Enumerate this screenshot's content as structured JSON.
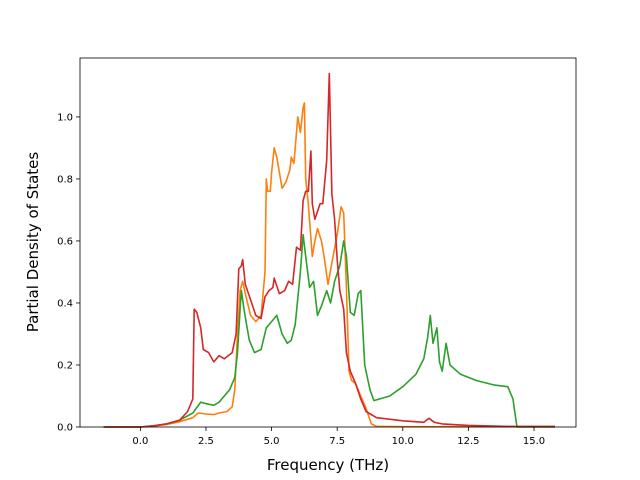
{
  "chart_data": {
    "type": "line",
    "xlabel": "Frequency (THz)",
    "ylabel": "Partial Density of States",
    "xlim": [
      -2.3,
      16.6
    ],
    "ylim": [
      0.0,
      1.19
    ],
    "xticks": [
      0.0,
      2.5,
      5.0,
      7.5,
      10.0,
      12.5,
      15.0
    ],
    "xtick_labels": [
      "0.0",
      "2.5",
      "5.0",
      "7.5",
      "10.0",
      "12.5",
      "15.0"
    ],
    "yticks": [
      0.0,
      0.2,
      0.4,
      0.6,
      0.8,
      1.0
    ],
    "ytick_labels": [
      "0.0",
      "0.2",
      "0.4",
      "0.6",
      "0.8",
      "1.0"
    ],
    "grid": false,
    "legend": "none",
    "series": [
      {
        "color": "#ff7f0e",
        "points": [
          [
            -1.4,
            0
          ],
          [
            0,
            0
          ],
          [
            0.5,
            0.003
          ],
          [
            1,
            0.008
          ],
          [
            1.5,
            0.017
          ],
          [
            2,
            0.03
          ],
          [
            2.2,
            0.045
          ],
          [
            2.5,
            0.042
          ],
          [
            2.8,
            0.04
          ],
          [
            3.0,
            0.045
          ],
          [
            3.3,
            0.05
          ],
          [
            3.5,
            0.065
          ],
          [
            3.6,
            0.12
          ],
          [
            3.7,
            0.3
          ],
          [
            3.8,
            0.44
          ],
          [
            3.9,
            0.47
          ],
          [
            4.0,
            0.43
          ],
          [
            4.2,
            0.36
          ],
          [
            4.4,
            0.34
          ],
          [
            4.6,
            0.36
          ],
          [
            4.75,
            0.5
          ],
          [
            4.8,
            0.8
          ],
          [
            4.85,
            0.76
          ],
          [
            4.95,
            0.76
          ],
          [
            5.0,
            0.82
          ],
          [
            5.1,
            0.9
          ],
          [
            5.2,
            0.87
          ],
          [
            5.4,
            0.77
          ],
          [
            5.55,
            0.79
          ],
          [
            5.7,
            0.83
          ],
          [
            5.75,
            0.87
          ],
          [
            5.85,
            0.85
          ],
          [
            5.95,
            0.95
          ],
          [
            6.0,
            1.0
          ],
          [
            6.1,
            0.95
          ],
          [
            6.2,
            1.03
          ],
          [
            6.25,
            1.045
          ],
          [
            6.3,
            0.8
          ],
          [
            6.4,
            0.72
          ],
          [
            6.55,
            0.55
          ],
          [
            6.65,
            0.6
          ],
          [
            6.75,
            0.64
          ],
          [
            6.9,
            0.6
          ],
          [
            7.0,
            0.55
          ],
          [
            7.15,
            0.46
          ],
          [
            7.3,
            0.53
          ],
          [
            7.5,
            0.62
          ],
          [
            7.65,
            0.71
          ],
          [
            7.75,
            0.69
          ],
          [
            7.85,
            0.45
          ],
          [
            7.95,
            0.18
          ],
          [
            8.05,
            0.15
          ],
          [
            8.2,
            0.14
          ],
          [
            8.4,
            0.1
          ],
          [
            8.6,
            0.06
          ],
          [
            8.8,
            0.01
          ],
          [
            9.0,
            0.002
          ],
          [
            10.0,
            0.001
          ],
          [
            11.5,
            0.001
          ],
          [
            14.3,
            0.001
          ],
          [
            15.8,
            0.001
          ]
        ]
      },
      {
        "color": "#2ca02c",
        "points": [
          [
            -1.4,
            0
          ],
          [
            0,
            0
          ],
          [
            0.5,
            0.004
          ],
          [
            1,
            0.01
          ],
          [
            1.5,
            0.022
          ],
          [
            2,
            0.045
          ],
          [
            2.3,
            0.08
          ],
          [
            2.5,
            0.075
          ],
          [
            2.8,
            0.07
          ],
          [
            3.0,
            0.08
          ],
          [
            3.2,
            0.1
          ],
          [
            3.4,
            0.12
          ],
          [
            3.6,
            0.16
          ],
          [
            3.7,
            0.24
          ],
          [
            3.8,
            0.38
          ],
          [
            3.85,
            0.44
          ],
          [
            3.95,
            0.38
          ],
          [
            4.05,
            0.33
          ],
          [
            4.15,
            0.28
          ],
          [
            4.35,
            0.24
          ],
          [
            4.6,
            0.25
          ],
          [
            4.8,
            0.32
          ],
          [
            5.0,
            0.34
          ],
          [
            5.2,
            0.36
          ],
          [
            5.4,
            0.3
          ],
          [
            5.6,
            0.27
          ],
          [
            5.75,
            0.28
          ],
          [
            5.9,
            0.33
          ],
          [
            6.1,
            0.5
          ],
          [
            6.2,
            0.62
          ],
          [
            6.3,
            0.55
          ],
          [
            6.45,
            0.45
          ],
          [
            6.6,
            0.47
          ],
          [
            6.75,
            0.36
          ],
          [
            6.9,
            0.39
          ],
          [
            7.1,
            0.44
          ],
          [
            7.25,
            0.4
          ],
          [
            7.4,
            0.47
          ],
          [
            7.6,
            0.52
          ],
          [
            7.75,
            0.6
          ],
          [
            7.85,
            0.55
          ],
          [
            8.0,
            0.37
          ],
          [
            8.15,
            0.36
          ],
          [
            8.3,
            0.43
          ],
          [
            8.4,
            0.44
          ],
          [
            8.55,
            0.2
          ],
          [
            8.75,
            0.12
          ],
          [
            8.9,
            0.085
          ],
          [
            9.5,
            0.1
          ],
          [
            10.0,
            0.13
          ],
          [
            10.5,
            0.17
          ],
          [
            10.8,
            0.22
          ],
          [
            10.95,
            0.29
          ],
          [
            11.05,
            0.36
          ],
          [
            11.15,
            0.27
          ],
          [
            11.3,
            0.32
          ],
          [
            11.4,
            0.21
          ],
          [
            11.5,
            0.18
          ],
          [
            11.65,
            0.27
          ],
          [
            11.8,
            0.2
          ],
          [
            12.2,
            0.17
          ],
          [
            12.8,
            0.15
          ],
          [
            13.5,
            0.135
          ],
          [
            14.0,
            0.13
          ],
          [
            14.2,
            0.09
          ],
          [
            14.3,
            0.03
          ],
          [
            14.35,
            0.0
          ],
          [
            15.8,
            0.0
          ]
        ]
      },
      {
        "color": "#d62728",
        "points": [
          [
            -1.4,
            0
          ],
          [
            0,
            0
          ],
          [
            0.5,
            0.004
          ],
          [
            1,
            0.01
          ],
          [
            1.5,
            0.022
          ],
          [
            1.8,
            0.05
          ],
          [
            2.0,
            0.09
          ],
          [
            2.05,
            0.38
          ],
          [
            2.15,
            0.37
          ],
          [
            2.3,
            0.32
          ],
          [
            2.4,
            0.25
          ],
          [
            2.6,
            0.24
          ],
          [
            2.8,
            0.21
          ],
          [
            3.0,
            0.23
          ],
          [
            3.2,
            0.22
          ],
          [
            3.5,
            0.24
          ],
          [
            3.65,
            0.3
          ],
          [
            3.75,
            0.51
          ],
          [
            3.85,
            0.52
          ],
          [
            3.9,
            0.54
          ],
          [
            4.0,
            0.46
          ],
          [
            4.2,
            0.41
          ],
          [
            4.4,
            0.36
          ],
          [
            4.6,
            0.35
          ],
          [
            4.75,
            0.42
          ],
          [
            4.9,
            0.44
          ],
          [
            5.05,
            0.45
          ],
          [
            5.1,
            0.48
          ],
          [
            5.3,
            0.43
          ],
          [
            5.5,
            0.44
          ],
          [
            5.65,
            0.47
          ],
          [
            5.8,
            0.46
          ],
          [
            5.95,
            0.58
          ],
          [
            6.1,
            0.57
          ],
          [
            6.2,
            0.73
          ],
          [
            6.3,
            0.76
          ],
          [
            6.4,
            0.76
          ],
          [
            6.5,
            0.89
          ],
          [
            6.55,
            0.72
          ],
          [
            6.65,
            0.67
          ],
          [
            6.85,
            0.72
          ],
          [
            6.95,
            0.72
          ],
          [
            7.1,
            0.86
          ],
          [
            7.2,
            1.14
          ],
          [
            7.3,
            0.75
          ],
          [
            7.4,
            0.67
          ],
          [
            7.5,
            0.54
          ],
          [
            7.6,
            0.44
          ],
          [
            7.75,
            0.38
          ],
          [
            7.85,
            0.24
          ],
          [
            8.0,
            0.18
          ],
          [
            8.2,
            0.14
          ],
          [
            8.4,
            0.09
          ],
          [
            8.6,
            0.05
          ],
          [
            9.0,
            0.03
          ],
          [
            10.0,
            0.02
          ],
          [
            10.8,
            0.015
          ],
          [
            11.0,
            0.028
          ],
          [
            11.2,
            0.015
          ],
          [
            11.5,
            0.01
          ],
          [
            12.5,
            0.005
          ],
          [
            14.0,
            0.002
          ],
          [
            15.8,
            0.002
          ]
        ]
      }
    ]
  }
}
